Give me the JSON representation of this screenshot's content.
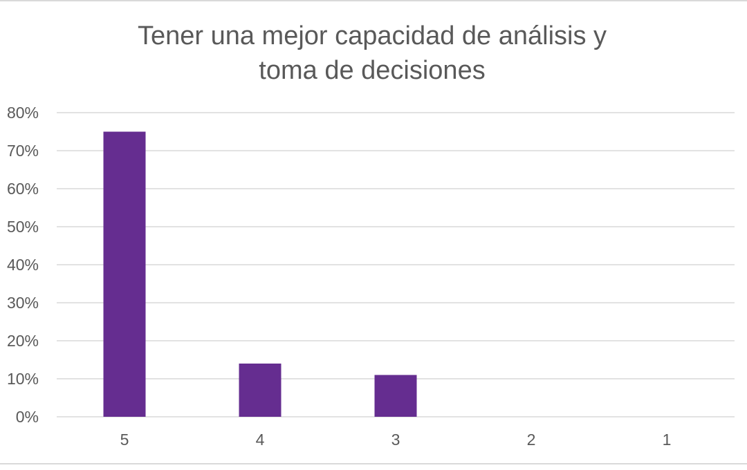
{
  "chart_data": {
    "type": "bar",
    "title_lines": [
      "Tener una mejor capacidad de análisis y",
      "toma de decisiones"
    ],
    "categories": [
      "5",
      "4",
      "3",
      "2",
      "1"
    ],
    "values": [
      0.75,
      0.14,
      0.11,
      0,
      0
    ],
    "ylim": [
      0,
      0.8
    ],
    "yticks": [
      0,
      0.1,
      0.2,
      0.3,
      0.4,
      0.5,
      0.6,
      0.7,
      0.8
    ],
    "ytick_labels": [
      "0%",
      "10%",
      "20%",
      "30%",
      "40%",
      "50%",
      "60%",
      "70%",
      "80%"
    ],
    "xlabel": "",
    "ylabel": "",
    "grid": true,
    "legend": "none",
    "bar_color": "#652d90"
  }
}
